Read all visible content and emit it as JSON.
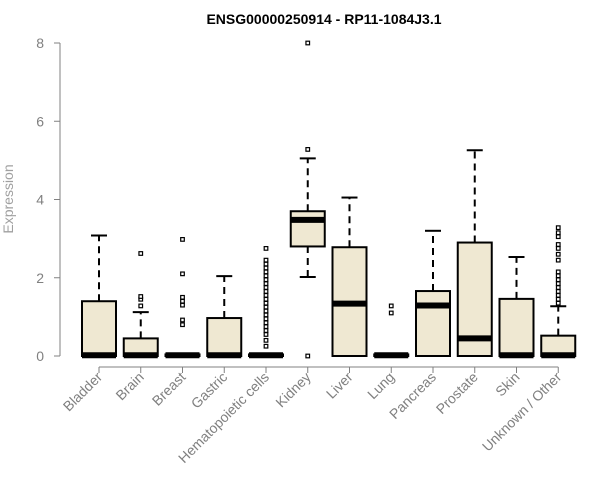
{
  "chart_data": {
    "type": "box",
    "title": "ENSG00000250914 - RP11-1084J3.1",
    "ylabel": "Expression",
    "xlabel": "",
    "ylim": [
      0,
      8
    ],
    "yticks": [
      0,
      2,
      4,
      6,
      8
    ],
    "box_fill": "#efe8d2",
    "stroke": "#000000",
    "categories": [
      {
        "name": "Bladder",
        "lo": 0,
        "q1": 0,
        "median": 0.02,
        "q3": 1.4,
        "hi": 3.08,
        "outliers": []
      },
      {
        "name": "Brain",
        "lo": 0,
        "q1": 0,
        "median": 0.02,
        "q3": 0.45,
        "hi": 1.12,
        "outliers": [
          1.28,
          1.45,
          1.52,
          2.62
        ]
      },
      {
        "name": "Breast",
        "lo": 0,
        "q1": 0,
        "median": 0.02,
        "q3": 0.04,
        "hi": 0.04,
        "outliers": [
          0.8,
          0.92,
          1.3,
          1.4,
          1.5,
          2.1,
          2.98
        ]
      },
      {
        "name": "Gastric",
        "lo": 0,
        "q1": 0,
        "median": 0.02,
        "q3": 0.97,
        "hi": 2.04,
        "outliers": []
      },
      {
        "name": "Hematopoietic cells",
        "lo": 0,
        "q1": 0,
        "median": 0.02,
        "q3": 0.04,
        "hi": 0.04,
        "outliers": [
          0.25,
          0.4,
          0.55,
          0.65,
          0.75,
          0.85,
          0.95,
          1.05,
          1.15,
          1.25,
          1.35,
          1.45,
          1.55,
          1.65,
          1.75,
          1.85,
          1.95,
          2.05,
          2.15,
          2.25,
          2.35,
          2.45,
          2.75
        ]
      },
      {
        "name": "Kidney",
        "lo": 2.02,
        "q1": 2.8,
        "median": 3.48,
        "q3": 3.7,
        "hi": 5.05,
        "outliers": [
          0,
          5.28,
          8.0
        ]
      },
      {
        "name": "Liver",
        "lo": 0,
        "q1": 0,
        "median": 1.34,
        "q3": 2.78,
        "hi": 4.05,
        "outliers": []
      },
      {
        "name": "Lung",
        "lo": 0,
        "q1": 0,
        "median": 0.02,
        "q3": 0.04,
        "hi": 0.04,
        "outliers": [
          1.1,
          1.28
        ]
      },
      {
        "name": "Pancreas",
        "lo": 0,
        "q1": 0,
        "median": 1.29,
        "q3": 1.66,
        "hi": 3.2,
        "outliers": []
      },
      {
        "name": "Prostate",
        "lo": 0,
        "q1": 0,
        "median": 0.45,
        "q3": 2.9,
        "hi": 5.26,
        "outliers": []
      },
      {
        "name": "Skin",
        "lo": 0,
        "q1": 0,
        "median": 0.02,
        "q3": 1.46,
        "hi": 2.53,
        "outliers": []
      },
      {
        "name": "Unknown / Other",
        "lo": 0,
        "q1": 0,
        "median": 0.02,
        "q3": 0.52,
        "hi": 1.27,
        "outliers": [
          1.35,
          1.45,
          1.55,
          1.65,
          1.75,
          1.85,
          1.95,
          2.05,
          2.15,
          2.45,
          2.6,
          2.75,
          2.85,
          3.05,
          3.15,
          3.28
        ]
      }
    ]
  }
}
